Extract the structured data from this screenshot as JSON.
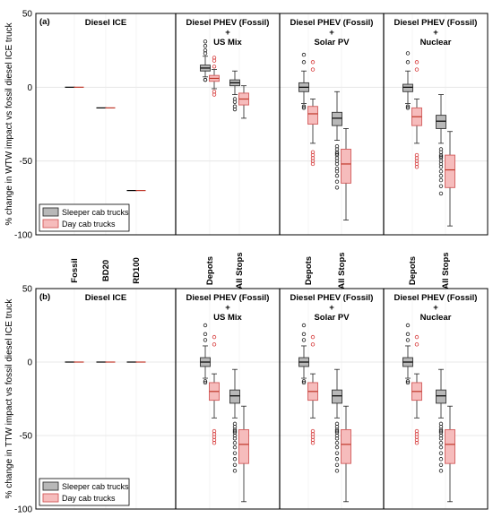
{
  "chart_data": [
    {
      "type": "box",
      "panel_label": "(a)",
      "ylabel": "% change in WTW impact vs fossil diesel ICE truck",
      "ylim": [
        -100,
        50
      ],
      "yticks": [
        50,
        0,
        -50,
        -100
      ],
      "sections": [
        {
          "title_lines": [
            "Diesel ICE"
          ]
        },
        {
          "title_lines": [
            "Diesel PHEV (Fossil)",
            "+",
            "US Mix"
          ]
        },
        {
          "title_lines": [
            "Diesel PHEV (Fossil)",
            "+",
            "Solar PV"
          ]
        },
        {
          "title_lines": [
            "Diesel PHEV (Fossil)",
            "+",
            "Nuclear"
          ]
        }
      ],
      "categories": [
        {
          "label": "Fossil",
          "section": 0
        },
        {
          "label": "BD20",
          "section": 0
        },
        {
          "label": "RD100",
          "section": 0
        },
        {
          "label": "Depots",
          "section": 1
        },
        {
          "label": "All Stops",
          "section": 1
        },
        {
          "label": "Depots",
          "section": 2
        },
        {
          "label": "All Stops",
          "section": 2
        },
        {
          "label": "Depots",
          "section": 3
        },
        {
          "label": "All Stops",
          "section": 3
        }
      ],
      "legend": {
        "position": "bottom-left",
        "entries": [
          "Sleeper cab trucks",
          "Day cab trucks"
        ]
      },
      "series": [
        {
          "name": "Sleeper cab trucks",
          "color": "#b8b8b8",
          "boxes": [
            {
              "cat": 0,
              "med": 0,
              "q1": 0,
              "q3": 0,
              "wlo": 0,
              "whi": 0,
              "out": []
            },
            {
              "cat": 1,
              "med": -14,
              "q1": -14,
              "q3": -14,
              "wlo": -14,
              "whi": -14,
              "out": []
            },
            {
              "cat": 2,
              "med": -70,
              "q1": -70,
              "q3": -70,
              "wlo": -70,
              "whi": -70,
              "out": []
            },
            {
              "cat": 3,
              "med": 13,
              "q1": 11,
              "q3": 15,
              "wlo": 7,
              "whi": 21,
              "out": [
                5,
                5,
                23,
                25,
                28,
                31
              ]
            },
            {
              "cat": 4,
              "med": 3,
              "q1": 1,
              "q3": 5,
              "wlo": -5,
              "whi": 11,
              "out": [
                -8,
                -10,
                -13,
                -15
              ]
            },
            {
              "cat": 5,
              "med": 0,
              "q1": -3,
              "q3": 3,
              "wlo": -11,
              "whi": 11,
              "out": [
                -13,
                -14,
                17,
                22
              ]
            },
            {
              "cat": 6,
              "med": -21,
              "q1": -26,
              "q3": -17,
              "wlo": -36,
              "whi": -3,
              "out": [
                -40,
                -42,
                -44,
                -45,
                -46,
                -48,
                -50,
                -52,
                -55,
                -57,
                -60,
                -64,
                -68
              ]
            },
            {
              "cat": 7,
              "med": 0,
              "q1": -3,
              "q3": 2,
              "wlo": -11,
              "whi": 11,
              "out": [
                -13,
                -14,
                17,
                23
              ]
            },
            {
              "cat": 8,
              "med": -23,
              "q1": -28,
              "q3": -19,
              "wlo": -38,
              "whi": -5,
              "out": [
                -42,
                -44,
                -46,
                -47,
                -48,
                -50,
                -52,
                -54,
                -57,
                -60,
                -63,
                -67,
                -72
              ]
            }
          ]
        },
        {
          "name": "Day cab trucks",
          "color": "#f6bcbc",
          "boxes": [
            {
              "cat": 0,
              "med": 0,
              "q1": 0,
              "q3": 0,
              "wlo": 0,
              "whi": 0,
              "out": []
            },
            {
              "cat": 1,
              "med": -14,
              "q1": -14,
              "q3": -14,
              "wlo": -14,
              "whi": -14,
              "out": []
            },
            {
              "cat": 2,
              "med": -70,
              "q1": -70,
              "q3": -70,
              "wlo": -70,
              "whi": -70,
              "out": []
            },
            {
              "cat": 3,
              "med": 6,
              "q1": 4,
              "q3": 8,
              "wlo": -1,
              "whi": 12,
              "out": [
                -3,
                -5,
                14,
                18,
                20
              ]
            },
            {
              "cat": 4,
              "med": -8,
              "q1": -12,
              "q3": -4,
              "wlo": -21,
              "whi": 1,
              "out": []
            },
            {
              "cat": 5,
              "med": -18,
              "q1": -25,
              "q3": -13,
              "wlo": -38,
              "whi": -8,
              "out": [
                -44,
                -46,
                -48,
                -50,
                -52,
                12,
                17
              ]
            },
            {
              "cat": 6,
              "med": -52,
              "q1": -65,
              "q3": -42,
              "wlo": -90,
              "whi": -28,
              "out": []
            },
            {
              "cat": 7,
              "med": -20,
              "q1": -26,
              "q3": -14,
              "wlo": -38,
              "whi": -8,
              "out": [
                -46,
                -48,
                -50,
                -52,
                -54,
                12,
                17
              ]
            },
            {
              "cat": 8,
              "med": -56,
              "q1": -68,
              "q3": -46,
              "wlo": -94,
              "whi": -30,
              "out": []
            }
          ]
        }
      ]
    },
    {
      "type": "box",
      "panel_label": "(b)",
      "ylabel": "% change in TTW impact vs fossil diesel ICE truck",
      "ylim": [
        -100,
        50
      ],
      "yticks": [
        50,
        0,
        -50,
        -100
      ],
      "sections": [
        {
          "title_lines": [
            "Diesel ICE"
          ]
        },
        {
          "title_lines": [
            "Diesel PHEV (Fossil)",
            "+",
            "US Mix"
          ]
        },
        {
          "title_lines": [
            "Diesel PHEV (Fossil)",
            "+",
            "Solar PV"
          ]
        },
        {
          "title_lines": [
            "Diesel PHEV (Fossil)",
            "+",
            "Nuclear"
          ]
        }
      ],
      "categories": [
        {
          "label": "",
          "section": 0
        },
        {
          "label": "",
          "section": 0
        },
        {
          "label": "",
          "section": 0
        },
        {
          "label": "",
          "section": 1
        },
        {
          "label": "",
          "section": 1
        },
        {
          "label": "",
          "section": 2
        },
        {
          "label": "",
          "section": 2
        },
        {
          "label": "",
          "section": 3
        },
        {
          "label": "",
          "section": 3
        }
      ],
      "legend": {
        "position": "bottom-left",
        "entries": [
          "Sleeper cab trucks",
          "Day cab trucks"
        ]
      },
      "series": [
        {
          "name": "Sleeper cab trucks",
          "color": "#b8b8b8",
          "boxes": [
            {
              "cat": 0,
              "med": 0,
              "q1": 0,
              "q3": 0,
              "wlo": 0,
              "whi": 0,
              "out": []
            },
            {
              "cat": 1,
              "med": 0,
              "q1": 0,
              "q3": 0,
              "wlo": 0,
              "whi": 0,
              "out": []
            },
            {
              "cat": 2,
              "med": 0,
              "q1": 0,
              "q3": 0,
              "wlo": 0,
              "whi": 0,
              "out": []
            },
            {
              "cat": 3,
              "med": 0,
              "q1": -3,
              "q3": 3,
              "wlo": -11,
              "whi": 11,
              "out": [
                -13,
                -14,
                15,
                19,
                25
              ]
            },
            {
              "cat": 4,
              "med": -23,
              "q1": -28,
              "q3": -19,
              "wlo": -38,
              "whi": -5,
              "out": [
                -42,
                -44,
                -46,
                -47,
                -48,
                -50,
                -52,
                -55,
                -58,
                -62,
                -66,
                -70,
                -74
              ]
            },
            {
              "cat": 5,
              "med": 0,
              "q1": -3,
              "q3": 3,
              "wlo": -11,
              "whi": 11,
              "out": [
                -13,
                -14,
                15,
                19,
                25
              ]
            },
            {
              "cat": 6,
              "med": -23,
              "q1": -28,
              "q3": -19,
              "wlo": -38,
              "whi": -5,
              "out": [
                -42,
                -44,
                -46,
                -47,
                -48,
                -50,
                -52,
                -55,
                -58,
                -62,
                -66,
                -70,
                -74
              ]
            },
            {
              "cat": 7,
              "med": 0,
              "q1": -3,
              "q3": 3,
              "wlo": -11,
              "whi": 11,
              "out": [
                -13,
                -14,
                15,
                19,
                25
              ]
            },
            {
              "cat": 8,
              "med": -23,
              "q1": -28,
              "q3": -19,
              "wlo": -38,
              "whi": -5,
              "out": [
                -42,
                -44,
                -46,
                -47,
                -48,
                -50,
                -52,
                -55,
                -58,
                -62,
                -66,
                -70,
                -74
              ]
            }
          ]
        },
        {
          "name": "Day cab trucks",
          "color": "#f6bcbc",
          "boxes": [
            {
              "cat": 0,
              "med": 0,
              "q1": 0,
              "q3": 0,
              "wlo": 0,
              "whi": 0,
              "out": []
            },
            {
              "cat": 1,
              "med": 0,
              "q1": 0,
              "q3": 0,
              "wlo": 0,
              "whi": 0,
              "out": []
            },
            {
              "cat": 2,
              "med": 0,
              "q1": 0,
              "q3": 0,
              "wlo": 0,
              "whi": 0,
              "out": []
            },
            {
              "cat": 3,
              "med": -20,
              "q1": -26,
              "q3": -14,
              "wlo": -38,
              "whi": -8,
              "out": [
                -47,
                -49,
                -51,
                -53,
                -55,
                12,
                17
              ]
            },
            {
              "cat": 4,
              "med": -56,
              "q1": -69,
              "q3": -46,
              "wlo": -95,
              "whi": -30,
              "out": []
            },
            {
              "cat": 5,
              "med": -20,
              "q1": -26,
              "q3": -14,
              "wlo": -38,
              "whi": -8,
              "out": [
                -47,
                -49,
                -51,
                -53,
                -55,
                12,
                17
              ]
            },
            {
              "cat": 6,
              "med": -56,
              "q1": -69,
              "q3": -46,
              "wlo": -95,
              "whi": -30,
              "out": []
            },
            {
              "cat": 7,
              "med": -20,
              "q1": -26,
              "q3": -14,
              "wlo": -38,
              "whi": -8,
              "out": [
                -47,
                -49,
                -51,
                -53,
                -55,
                12,
                17
              ]
            },
            {
              "cat": 8,
              "med": -56,
              "q1": -69,
              "q3": -46,
              "wlo": -95,
              "whi": -30,
              "out": []
            }
          ]
        }
      ]
    }
  ]
}
